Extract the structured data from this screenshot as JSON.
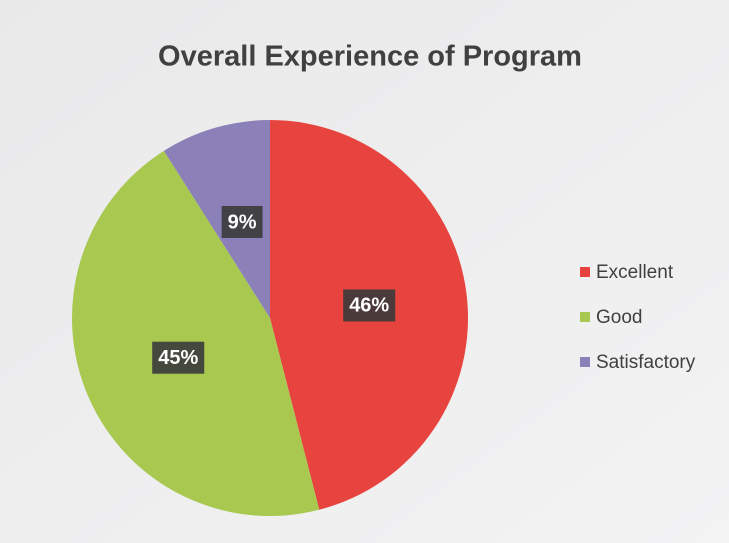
{
  "chart_data": {
    "type": "pie",
    "title": "Overall Experience of Program",
    "categories": [
      "Excellent",
      "Good",
      "Satisfactory"
    ],
    "values": [
      46,
      45,
      9
    ],
    "value_labels": [
      "46%",
      "45%",
      "9%"
    ],
    "colors": [
      "#e8443f",
      "#a8c850",
      "#8b80b8"
    ],
    "legend": "right"
  }
}
